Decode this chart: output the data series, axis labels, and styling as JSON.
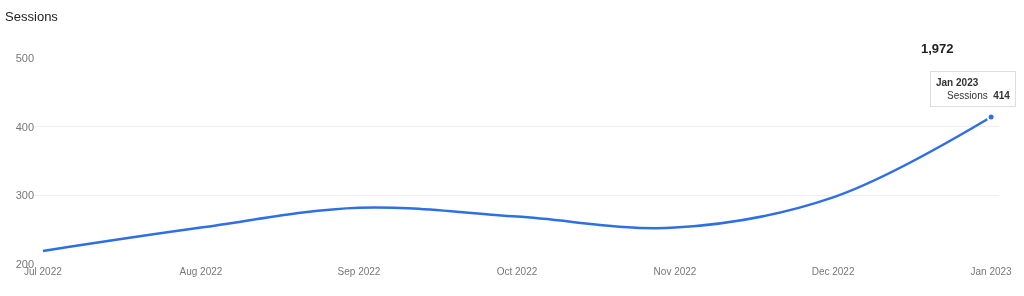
{
  "chart_data": {
    "type": "line",
    "title": "Sessions",
    "annotations": [
      "1,972"
    ],
    "categories": [
      "Jul 2022",
      "Aug 2022",
      "Sep 2022",
      "Oct 2022",
      "Nov 2022",
      "Dec 2022",
      "Jan 2023"
    ],
    "series": [
      {
        "name": "Sessions",
        "color": "#2f6fe4",
        "values": [
          219,
          253,
          282,
          269,
          253,
          297,
          414
        ],
        "value_labels": [
          null,
          null,
          null,
          null,
          null,
          null,
          "414"
        ]
      }
    ],
    "ylim": [
      200,
      500
    ],
    "yticks": [
      200,
      300,
      400,
      500
    ],
    "grid": "y",
    "legend": false,
    "marker": "none",
    "line_style": "solid"
  }
}
